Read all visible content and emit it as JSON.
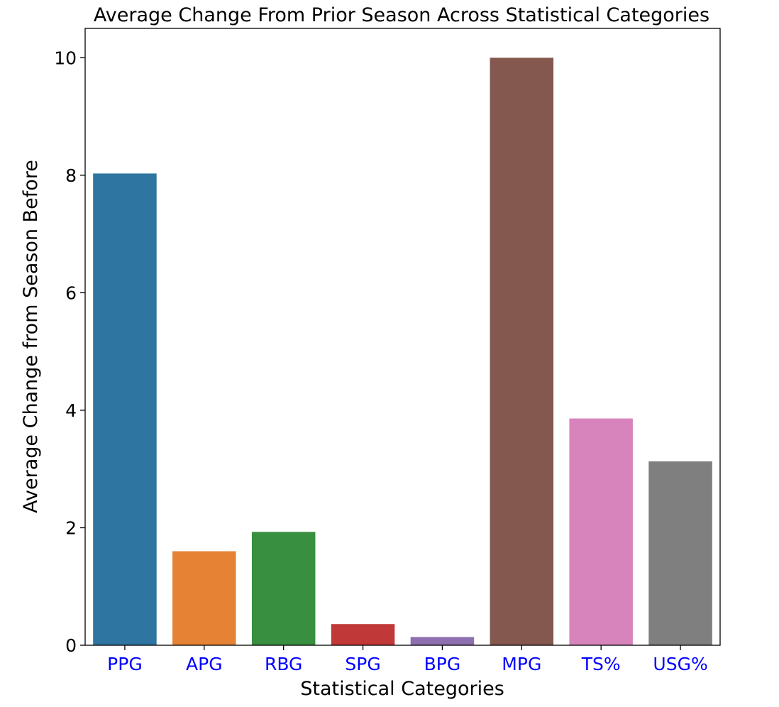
{
  "chart_data": {
    "type": "bar",
    "title": "Average Change From Prior Season Across Statistical Categories",
    "xlabel": "Statistical Categories",
    "ylabel": "Average Change from Season Before",
    "categories": [
      "PPG",
      "APG",
      "RBG",
      "SPG",
      "BPG",
      "MPG",
      "TS%",
      "USG%"
    ],
    "values": [
      8.03,
      1.6,
      1.93,
      0.36,
      0.14,
      10.0,
      3.86,
      3.13
    ],
    "colors": [
      "#2e75a2",
      "#e68234",
      "#388f3f",
      "#c13839",
      "#8e6fb0",
      "#84584f",
      "#d784bd",
      "#7f7f7f"
    ],
    "ylim": [
      0,
      10.5
    ],
    "yticks": [
      0,
      2,
      4,
      6,
      8,
      10
    ],
    "tick_label_color": "#0000ff",
    "grid": false,
    "legend": "none"
  }
}
